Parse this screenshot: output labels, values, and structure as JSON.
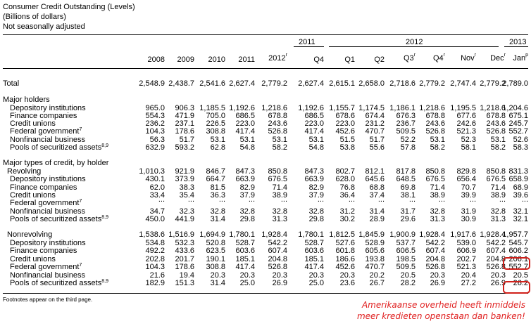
{
  "header": {
    "title": "Consumer Credit Outstanding (Levels)",
    "units": "(Billions of dollars)",
    "adjustment": "Not seasonally adjusted"
  },
  "year_groups": {
    "y2011": "2011",
    "y2012": "2012",
    "y2013": "2013"
  },
  "columns": [
    {
      "label": "2008",
      "sup": ""
    },
    {
      "label": "2009",
      "sup": ""
    },
    {
      "label": "2010",
      "sup": ""
    },
    {
      "label": "2011",
      "sup": ""
    },
    {
      "label": "2012",
      "sup": "r"
    },
    {
      "label": "Q4",
      "sup": ""
    },
    {
      "label": "Q1",
      "sup": ""
    },
    {
      "label": "Q2",
      "sup": ""
    },
    {
      "label": "Q3",
      "sup": "r"
    },
    {
      "label": "Q4",
      "sup": "r"
    },
    {
      "label": "Nov",
      "sup": "r"
    },
    {
      "label": "Dec",
      "sup": "r"
    },
    {
      "label": "Jan",
      "sup": "p"
    }
  ],
  "rows": [
    {
      "label": "Total",
      "sup": "",
      "indent": 0,
      "values": [
        "2,548.9",
        "2,438.7",
        "2,541.6",
        "2,627.4",
        "2,779.2",
        "2,627.4",
        "2,615.1",
        "2,658.0",
        "2,718.6",
        "2,779.2",
        "2,747.4",
        "2,779.2",
        "2,789.0"
      ]
    },
    {
      "label": "Major holders",
      "sup": "",
      "indent": 0,
      "values": []
    },
    {
      "label": "Depository institutions",
      "sup": "",
      "indent": 2,
      "values": [
        "965.0",
        "906.3",
        "1,185.5",
        "1,192.6",
        "1,218.6",
        "1,192.6",
        "1,155.7",
        "1,174.5",
        "1,186.1",
        "1,218.6",
        "1,195.5",
        "1,218.6",
        "1,204.6"
      ]
    },
    {
      "label": "Finance companies",
      "sup": "",
      "indent": 2,
      "values": [
        "554.3",
        "471.9",
        "705.0",
        "686.5",
        "678.8",
        "686.5",
        "678.6",
        "674.4",
        "676.3",
        "678.8",
        "677.6",
        "678.8",
        "675.1"
      ]
    },
    {
      "label": "Credit unions",
      "sup": "",
      "indent": 2,
      "values": [
        "236.2",
        "237.1",
        "226.5",
        "223.0",
        "243.6",
        "223.0",
        "223.0",
        "231.2",
        "236.7",
        "243.6",
        "242.6",
        "243.6",
        "245.7"
      ]
    },
    {
      "label": "Federal government",
      "sup": "7",
      "indent": 2,
      "values": [
        "104.3",
        "178.6",
        "308.8",
        "417.4",
        "526.8",
        "417.4",
        "452.6",
        "470.7",
        "509.5",
        "526.8",
        "521.3",
        "526.8",
        "552.7"
      ]
    },
    {
      "label": "Nonfinancial business",
      "sup": "",
      "indent": 2,
      "values": [
        "56.3",
        "51.7",
        "53.1",
        "53.1",
        "53.1",
        "53.1",
        "51.5",
        "51.7",
        "52.2",
        "53.1",
        "52.3",
        "53.1",
        "52.6"
      ]
    },
    {
      "label": "Pools of securitized assets",
      "sup": "8,9",
      "indent": 2,
      "values": [
        "632.9",
        "593.2",
        "62.8",
        "54.8",
        "58.2",
        "54.8",
        "53.8",
        "55.6",
        "57.8",
        "58.2",
        "58.1",
        "58.2",
        "58.3"
      ]
    },
    {
      "label": "Major types of credit, by holder",
      "sup": "",
      "indent": 0,
      "values": []
    },
    {
      "label": "Revolving",
      "sup": "",
      "indent": 1,
      "values": [
        "1,010.3",
        "921.9",
        "846.7",
        "847.3",
        "850.8",
        "847.3",
        "802.7",
        "812.1",
        "817.8",
        "850.8",
        "829.8",
        "850.8",
        "831.3"
      ]
    },
    {
      "label": "Depository institutions",
      "sup": "",
      "indent": 2,
      "values": [
        "430.1",
        "373.9",
        "664.7",
        "663.9",
        "676.5",
        "663.9",
        "628.0",
        "645.6",
        "648.5",
        "676.5",
        "656.4",
        "676.5",
        "658.9"
      ]
    },
    {
      "label": "Finance companies",
      "sup": "",
      "indent": 2,
      "values": [
        "62.0",
        "38.3",
        "81.5",
        "82.9",
        "71.4",
        "82.9",
        "76.8",
        "68.8",
        "69.8",
        "71.4",
        "70.7",
        "71.4",
        "68.9"
      ]
    },
    {
      "label": "Credit unions",
      "sup": "",
      "indent": 2,
      "values": [
        "33.4",
        "35.4",
        "36.3",
        "37.9",
        "38.9",
        "37.9",
        "36.4",
        "37.4",
        "38.1",
        "38.9",
        "39.9",
        "38.9",
        "39.6"
      ]
    },
    {
      "label": "Federal government",
      "sup": "7",
      "indent": 2,
      "values": [
        "...",
        "...",
        "...",
        "...",
        "...",
        "...",
        "...",
        "...",
        "...",
        "...",
        "...",
        "...",
        "..."
      ]
    },
    {
      "label": "Nonfinancial business",
      "sup": "",
      "indent": 2,
      "values": [
        "34.7",
        "32.3",
        "32.8",
        "32.8",
        "32.8",
        "32.8",
        "31.2",
        "31.4",
        "31.7",
        "32.8",
        "31.9",
        "32.8",
        "32.1"
      ]
    },
    {
      "label": "Pools of securitized assets",
      "sup": "8,9",
      "indent": 2,
      "values": [
        "450.0",
        "441.9",
        "31.4",
        "29.8",
        "31.3",
        "29.8",
        "30.2",
        "28.9",
        "29.6",
        "31.3",
        "30.9",
        "31.3",
        "32.1"
      ]
    },
    {
      "label": "Nonrevolving",
      "sup": "",
      "indent": 1,
      "values": [
        "1,538.6",
        "1,516.9",
        "1,694.9",
        "1,780.1",
        "1,928.4",
        "1,780.1",
        "1,812.5",
        "1,845.9",
        "1,900.9",
        "1,928.4",
        "1,917.6",
        "1,928.4",
        "1,957.7"
      ]
    },
    {
      "label": "Depository institutions",
      "sup": "",
      "indent": 2,
      "values": [
        "534.8",
        "532.3",
        "520.8",
        "528.7",
        "542.2",
        "528.7",
        "527.6",
        "528.9",
        "537.7",
        "542.2",
        "539.0",
        "542.2",
        "545.7"
      ]
    },
    {
      "label": "Finance companies",
      "sup": "",
      "indent": 2,
      "values": [
        "492.2",
        "433.6",
        "623.5",
        "603.6",
        "607.4",
        "603.6",
        "601.8",
        "605.6",
        "606.5",
        "607.4",
        "606.9",
        "607.4",
        "606.2"
      ]
    },
    {
      "label": "Credit unions",
      "sup": "",
      "indent": 2,
      "values": [
        "202.8",
        "201.7",
        "190.1",
        "185.1",
        "204.8",
        "185.1",
        "186.6",
        "193.8",
        "198.5",
        "204.8",
        "202.7",
        "204.8",
        "206.1"
      ]
    },
    {
      "label": "Federal government",
      "sup": "7",
      "indent": 2,
      "values": [
        "104.3",
        "178.6",
        "308.8",
        "417.4",
        "526.8",
        "417.4",
        "452.6",
        "470.7",
        "509.5",
        "526.8",
        "521.3",
        "526.8",
        "552.7"
      ]
    },
    {
      "label": "Nonfinancial business",
      "sup": "",
      "indent": 2,
      "values": [
        "21.6",
        "19.4",
        "20.3",
        "20.3",
        "20.3",
        "20.3",
        "20.3",
        "20.2",
        "20.5",
        "20.3",
        "20.4",
        "20.3",
        "20.5"
      ]
    },
    {
      "label": "Pools of securitized assets",
      "sup": "8,9",
      "indent": 2,
      "values": [
        "182.9",
        "151.3",
        "31.4",
        "25.0",
        "26.9",
        "25.0",
        "23.6",
        "26.7",
        "28.2",
        "26.9",
        "27.2",
        "26.9",
        "26.2"
      ]
    }
  ],
  "footnote": "Footnotes appear on the third page.",
  "annotation": {
    "line1": "Amerikaanse overheid heeft inmiddels",
    "line2": "meer kredieten openstaan dan banken!",
    "color": "#e02020"
  }
}
